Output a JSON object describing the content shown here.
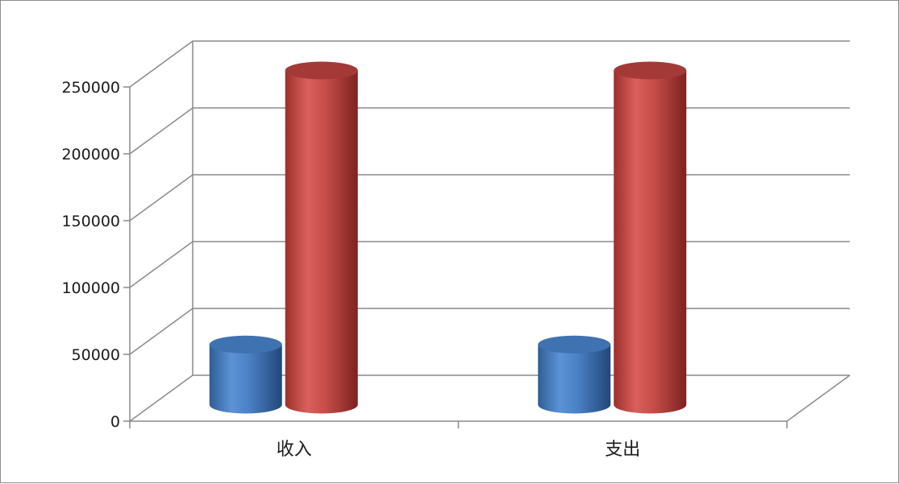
{
  "chart_data": {
    "type": "bar",
    "style": "3d-cylinder-clustered",
    "categories": [
      "收入",
      "支出"
    ],
    "series": [
      {
        "values": [
          45000,
          45000
        ],
        "color": "#4f81bd"
      },
      {
        "values": [
          250000,
          250000
        ],
        "color": "#c0504d"
      }
    ],
    "title": "",
    "xlabel": "",
    "ylabel": "",
    "ylim": [
      0,
      250000
    ],
    "yticks": [
      0,
      50000,
      100000,
      150000,
      200000,
      250000
    ],
    "ytick_labels": [
      "0",
      "50000",
      "100000",
      "150000",
      "200000",
      "250000"
    ],
    "grid": true,
    "legend": "none"
  }
}
